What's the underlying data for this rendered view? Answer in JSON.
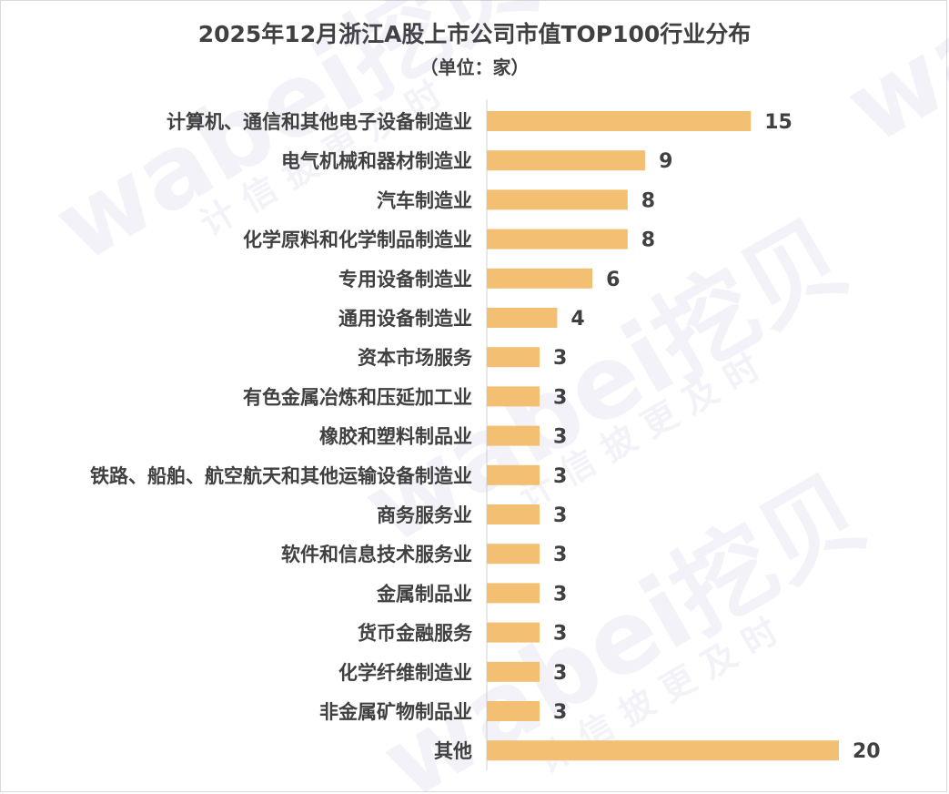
{
  "chart_data": {
    "type": "bar",
    "orientation": "horizontal",
    "title": "2025年12月浙江A股上市公司市值TOP100行业分布",
    "subtitle": "（单位：家）",
    "categories": [
      "计算机、通信和其他电子设备制造业",
      "电气机械和器材制造业",
      "汽车制造业",
      "化学原料和化学制品制造业",
      "专用设备制造业",
      "通用设备制造业",
      "资本市场服务",
      "有色金属冶炼和压延加工业",
      "橡胶和塑料制品业",
      "铁路、船舶、航空航天和其他运输设备制造业",
      "商务服务业",
      "软件和信息技术服务业",
      "金属制品业",
      "货币金融服务",
      "化学纤维制造业",
      "非金属矿物制品业",
      "其他"
    ],
    "values": [
      15,
      9,
      8,
      8,
      6,
      4,
      3,
      3,
      3,
      3,
      3,
      3,
      3,
      3,
      3,
      3,
      20
    ],
    "xlim": [
      0,
      21
    ],
    "grid": false,
    "legend": "none",
    "colors": {
      "bar": "#f2bf73",
      "text": "#404040",
      "axis": "#d0d0d0"
    }
  },
  "watermark": {
    "logo": "wabei挖贝",
    "slogan": "计信披更及时"
  }
}
